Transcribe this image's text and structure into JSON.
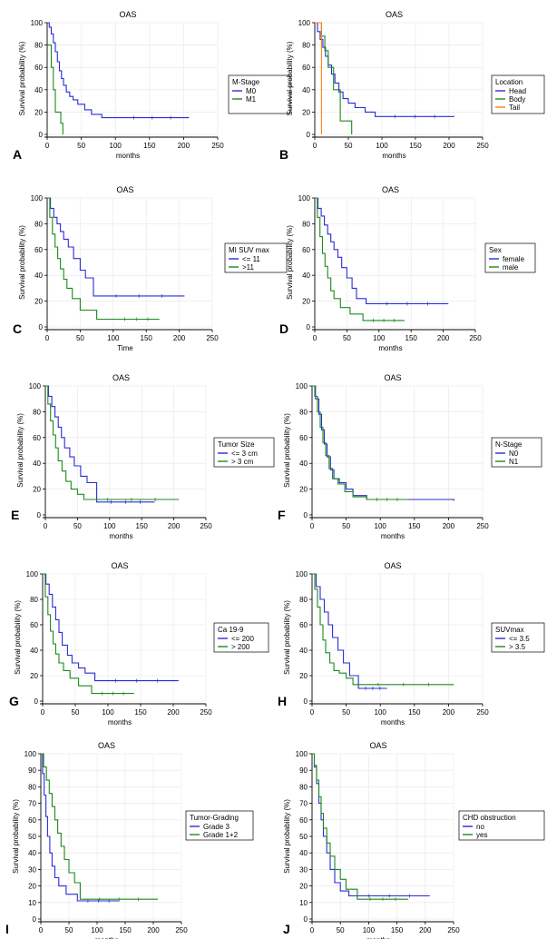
{
  "figure": {
    "panel_count": 10
  },
  "chart_data": [
    {
      "type": "line",
      "letter": "A",
      "title": "OAS",
      "xlabel": "months",
      "ylabel": "Survival probability (%)",
      "xlim": [
        0,
        250
      ],
      "ylim": [
        0,
        100
      ],
      "xticks": [
        "0",
        "50",
        "100",
        "150",
        "200",
        "250"
      ],
      "yticks": [
        "0",
        "20",
        "40",
        "60",
        "80",
        "100"
      ],
      "legend_title": "M-Stage",
      "series": [
        {
          "name": "M0",
          "color": "#2b2bd6",
          "x": [
            0,
            3,
            6,
            9,
            12,
            15,
            18,
            21,
            24,
            28,
            33,
            38,
            45,
            55,
            65,
            80,
            100,
            208
          ],
          "y": [
            100,
            96,
            90,
            82,
            74,
            65,
            57,
            50,
            44,
            38,
            34,
            31,
            27,
            22,
            18,
            15,
            15,
            15
          ]
        },
        {
          "name": "M1",
          "color": "#1c8a1c",
          "x": [
            0,
            3,
            6,
            9,
            12,
            16,
            20,
            23
          ],
          "y": [
            80,
            80,
            60,
            40,
            20,
            20,
            10,
            0
          ]
        }
      ]
    },
    {
      "type": "line",
      "letter": "B",
      "title": "OAS",
      "xlabel": "months",
      "ylabel": "Survival probability (%)",
      "xlim": [
        0,
        250
      ],
      "ylim": [
        0,
        100
      ],
      "xticks": [
        "0",
        "50",
        "100",
        "150",
        "200",
        "250"
      ],
      "yticks": [
        "0",
        "20",
        "40",
        "60",
        "80",
        "100"
      ],
      "legend_title": "Location",
      "series": [
        {
          "name": "Head",
          "color": "#2b2bd6",
          "x": [
            0,
            4,
            8,
            12,
            16,
            20,
            25,
            30,
            36,
            42,
            50,
            60,
            75,
            90,
            208
          ],
          "y": [
            100,
            92,
            85,
            78,
            70,
            62,
            54,
            46,
            38,
            32,
            28,
            24,
            20,
            16,
            16
          ]
        },
        {
          "name": "Body",
          "color": "#1c8a1c",
          "x": [
            0,
            6,
            10,
            15,
            20,
            28,
            38,
            55
          ],
          "y": [
            100,
            100,
            88,
            75,
            60,
            40,
            12,
            0
          ]
        },
        {
          "name": "Tail",
          "color": "#ff7f0e",
          "x": [
            0,
            10,
            10
          ],
          "y": [
            100,
            100,
            0
          ]
        }
      ]
    },
    {
      "type": "line",
      "letter": "C",
      "title": "OAS",
      "xlabel": "Time",
      "ylabel": "Survival probability (%)",
      "xlim": [
        0,
        250
      ],
      "ylim": [
        0,
        100
      ],
      "xticks": [
        "0",
        "50",
        "100",
        "150",
        "200",
        "250"
      ],
      "yticks": [
        "0",
        "20",
        "40",
        "60",
        "80",
        "100"
      ],
      "legend_title": "MI SUV max",
      "series": [
        {
          "name": "<= 11",
          "color": "#2b2bd6",
          "x": [
            0,
            5,
            10,
            15,
            20,
            25,
            32,
            40,
            50,
            58,
            70,
            208
          ],
          "y": [
            100,
            92,
            85,
            80,
            74,
            68,
            62,
            53,
            44,
            38,
            24,
            24
          ]
        },
        {
          "name": ">11",
          "color": "#1c8a1c",
          "x": [
            0,
            4,
            8,
            12,
            16,
            20,
            25,
            30,
            38,
            50,
            75,
            100,
            170
          ],
          "y": [
            100,
            85,
            72,
            62,
            53,
            45,
            37,
            30,
            22,
            13,
            6,
            6,
            6
          ]
        }
      ]
    },
    {
      "type": "line",
      "letter": "D",
      "title": "OAS",
      "xlabel": "months",
      "ylabel": "Survival probability (%)",
      "xlim": [
        0,
        250
      ],
      "ylim": [
        0,
        100
      ],
      "xticks": [
        "0",
        "50",
        "100",
        "150",
        "200",
        "250"
      ],
      "yticks": [
        "0",
        "20",
        "40",
        "60",
        "80",
        "100"
      ],
      "legend_title": "Sex",
      "series": [
        {
          "name": "female",
          "color": "#2b2bd6",
          "x": [
            0,
            5,
            10,
            15,
            20,
            25,
            30,
            36,
            42,
            50,
            58,
            65,
            80,
            208
          ],
          "y": [
            100,
            92,
            86,
            79,
            72,
            66,
            60,
            54,
            46,
            38,
            30,
            22,
            18,
            18
          ]
        },
        {
          "name": "male",
          "color": "#1c8a1c",
          "x": [
            0,
            4,
            8,
            12,
            16,
            20,
            25,
            30,
            40,
            55,
            75,
            140
          ],
          "y": [
            100,
            85,
            70,
            57,
            47,
            38,
            28,
            22,
            15,
            10,
            5,
            5
          ]
        }
      ]
    },
    {
      "type": "line",
      "letter": "E",
      "title": "OAS",
      "xlabel": "months",
      "ylabel": "Survival probability (%)",
      "xlim": [
        0,
        250
      ],
      "ylim": [
        0,
        100
      ],
      "xticks": [
        "0",
        "50",
        "100",
        "150",
        "200",
        "250"
      ],
      "yticks": [
        "0",
        "20",
        "40",
        "60",
        "80",
        "100"
      ],
      "legend_title": "Tumor Size",
      "series": [
        {
          "name": "<= 3 cm",
          "color": "#2b2bd6",
          "x": [
            0,
            5,
            10,
            15,
            20,
            25,
            30,
            38,
            45,
            55,
            65,
            80,
            170
          ],
          "y": [
            100,
            92,
            84,
            76,
            68,
            60,
            52,
            45,
            38,
            30,
            25,
            10,
            10
          ]
        },
        {
          "name": "> 3 cm",
          "color": "#1c8a1c",
          "x": [
            0,
            4,
            8,
            12,
            16,
            20,
            26,
            32,
            40,
            50,
            60,
            208
          ],
          "y": [
            100,
            86,
            73,
            62,
            52,
            42,
            34,
            26,
            20,
            16,
            12,
            12
          ]
        }
      ]
    },
    {
      "type": "line",
      "letter": "F",
      "title": "OAS",
      "xlabel": "months",
      "ylabel": "Survival probability (%)",
      "xlim": [
        0,
        250
      ],
      "ylim": [
        0,
        100
      ],
      "xticks": [
        "0",
        "50",
        "100",
        "150",
        "200",
        "250"
      ],
      "yticks": [
        "0",
        "20",
        "40",
        "60",
        "80",
        "100"
      ],
      "legend_title": "N-Stage",
      "series": [
        {
          "name": "N0",
          "color": "#2b2bd6",
          "x": [
            0,
            5,
            10,
            14,
            18,
            22,
            27,
            32,
            40,
            50,
            60,
            80,
            208
          ],
          "y": [
            100,
            90,
            78,
            66,
            55,
            45,
            35,
            28,
            25,
            20,
            15,
            12,
            11
          ]
        },
        {
          "name": "N1",
          "color": "#1c8a1c",
          "x": [
            0,
            4,
            8,
            12,
            16,
            20,
            25,
            30,
            38,
            48,
            60,
            80,
            140
          ],
          "y": [
            100,
            92,
            80,
            68,
            56,
            46,
            36,
            28,
            24,
            18,
            14,
            12,
            12
          ]
        }
      ]
    },
    {
      "type": "line",
      "letter": "G",
      "title": "OAS",
      "xlabel": "months",
      "ylabel": "Survival probability (%)",
      "xlim": [
        0,
        250
      ],
      "ylim": [
        0,
        100
      ],
      "xticks": [
        "0",
        "50",
        "100",
        "150",
        "200",
        "250"
      ],
      "yticks": [
        "0",
        "20",
        "40",
        "60",
        "80",
        "100"
      ],
      "legend_title": "Ca 19-9",
      "series": [
        {
          "name": "<= 200",
          "color": "#2b2bd6",
          "x": [
            0,
            5,
            10,
            15,
            20,
            25,
            30,
            38,
            45,
            55,
            65,
            80,
            208
          ],
          "y": [
            100,
            92,
            84,
            74,
            64,
            54,
            44,
            36,
            30,
            26,
            22,
            16,
            16
          ]
        },
        {
          "name": "> 200",
          "color": "#1c8a1c",
          "x": [
            0,
            4,
            8,
            12,
            16,
            20,
            25,
            32,
            42,
            55,
            75,
            140
          ],
          "y": [
            100,
            82,
            68,
            55,
            45,
            37,
            30,
            24,
            18,
            12,
            6,
            6
          ]
        }
      ]
    },
    {
      "type": "line",
      "letter": "H",
      "title": "OAS",
      "xlabel": "months",
      "ylabel": "Survival probability (%)",
      "xlim": [
        0,
        250
      ],
      "ylim": [
        0,
        100
      ],
      "xticks": [
        "0",
        "50",
        "100",
        "150",
        "200",
        "250"
      ],
      "yticks": [
        "0",
        "20",
        "40",
        "60",
        "80",
        "100"
      ],
      "legend_title": "SUVmax",
      "series": [
        {
          "name": "<= 3.5",
          "color": "#2b2bd6",
          "x": [
            0,
            6,
            12,
            18,
            24,
            30,
            38,
            46,
            55,
            68,
            110
          ],
          "y": [
            100,
            90,
            80,
            70,
            60,
            50,
            40,
            30,
            20,
            10,
            10
          ]
        },
        {
          "name": "> 3.5",
          "color": "#1c8a1c",
          "x": [
            0,
            4,
            8,
            12,
            16,
            20,
            26,
            32,
            40,
            50,
            60,
            208
          ],
          "y": [
            100,
            88,
            74,
            60,
            48,
            38,
            30,
            24,
            22,
            18,
            13,
            13
          ]
        }
      ]
    },
    {
      "type": "line",
      "letter": "I",
      "title": "OAS",
      "xlabel": "months",
      "ylabel": "Survival probability (%)",
      "xlim": [
        0,
        250
      ],
      "ylim": [
        0,
        100
      ],
      "xticks": [
        "0",
        "50",
        "100",
        "150",
        "200",
        "250"
      ],
      "yticks": [
        "0",
        "10",
        "20",
        "30",
        "40",
        "50",
        "60",
        "70",
        "80",
        "90",
        "100"
      ],
      "legend_title": "Tumor-Grading",
      "series": [
        {
          "name": "Grade 3",
          "color": "#2b2bd6",
          "x": [
            0,
            3,
            6,
            9,
            12,
            16,
            20,
            25,
            32,
            45,
            65,
            140
          ],
          "y": [
            100,
            88,
            75,
            62,
            50,
            40,
            32,
            25,
            20,
            15,
            11,
            11
          ]
        },
        {
          "name": "Grade 1+2",
          "color": "#1c8a1c",
          "x": [
            0,
            5,
            10,
            15,
            20,
            25,
            30,
            36,
            42,
            50,
            60,
            70,
            208
          ],
          "y": [
            100,
            92,
            84,
            76,
            68,
            60,
            52,
            44,
            36,
            28,
            22,
            12,
            12
          ]
        }
      ]
    },
    {
      "type": "line",
      "letter": "J",
      "title": "OAS",
      "xlabel": "months",
      "ylabel": "Survival probability (%)",
      "xlim": [
        0,
        250
      ],
      "ylim": [
        0,
        100
      ],
      "xticks": [
        "0",
        "50",
        "100",
        "150",
        "200",
        "250"
      ],
      "yticks": [
        "0",
        "10",
        "20",
        "30",
        "40",
        "50",
        "60",
        "70",
        "80",
        "90",
        "100"
      ],
      "legend_title": "CHD obstruction",
      "series": [
        {
          "name": "no",
          "color": "#2b2bd6",
          "x": [
            0,
            4,
            8,
            12,
            16,
            20,
            26,
            32,
            40,
            50,
            65,
            208
          ],
          "y": [
            100,
            92,
            82,
            70,
            60,
            50,
            40,
            30,
            22,
            17,
            14,
            14
          ]
        },
        {
          "name": "yes",
          "color": "#1c8a1c",
          "x": [
            0,
            4,
            8,
            12,
            16,
            20,
            26,
            32,
            40,
            50,
            60,
            80,
            170
          ],
          "y": [
            100,
            93,
            84,
            74,
            64,
            55,
            46,
            38,
            30,
            24,
            18,
            12,
            12
          ]
        }
      ]
    }
  ]
}
